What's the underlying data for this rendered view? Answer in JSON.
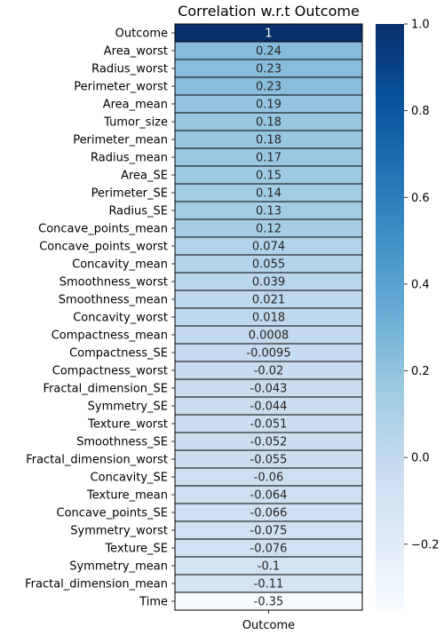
{
  "chart_data": {
    "type": "heatmap",
    "title": "Correlation w.r.t Outcome",
    "xlabel": "",
    "ylabel": "",
    "x_categories": [
      "Outcome"
    ],
    "y_categories": [
      "Outcome",
      "Area_worst",
      "Radius_worst",
      "Perimeter_worst",
      "Area_mean",
      "Tumor_size",
      "Perimeter_mean",
      "Radius_mean",
      "Area_SE",
      "Perimeter_SE",
      "Radius_SE",
      "Concave_points_mean",
      "Concave_points_worst",
      "Concavity_mean",
      "Smoothness_worst",
      "Smoothness_mean",
      "Concavity_worst",
      "Compactness_mean",
      "Compactness_SE",
      "Compactness_worst",
      "Fractal_dimension_SE",
      "Symmetry_SE",
      "Texture_worst",
      "Smoothness_SE",
      "Fractal_dimension_worst",
      "Concavity_SE",
      "Texture_mean",
      "Concave_points_SE",
      "Symmetry_worst",
      "Texture_SE",
      "Symmetry_mean",
      "Fractal_dimension_mean",
      "Time"
    ],
    "values": [
      1,
      0.24,
      0.23,
      0.23,
      0.19,
      0.18,
      0.18,
      0.17,
      0.15,
      0.14,
      0.13,
      0.12,
      0.074,
      0.055,
      0.039,
      0.021,
      0.018,
      0.0008,
      -0.0095,
      -0.02,
      -0.043,
      -0.044,
      -0.051,
      -0.052,
      -0.055,
      -0.06,
      -0.064,
      -0.066,
      -0.075,
      -0.076,
      -0.1,
      -0.11,
      -0.35
    ],
    "value_labels": [
      "1",
      "0.24",
      "0.23",
      "0.23",
      "0.19",
      "0.18",
      "0.18",
      "0.17",
      "0.15",
      "0.14",
      "0.13",
      "0.12",
      "0.074",
      "0.055",
      "0.039",
      "0.021",
      "0.018",
      "0.0008",
      "-0.0095",
      "-0.02",
      "-0.043",
      "-0.044",
      "-0.051",
      "-0.052",
      "-0.055",
      "-0.06",
      "-0.064",
      "-0.066",
      "-0.075",
      "-0.076",
      "-0.1",
      "-0.11",
      "-0.35"
    ],
    "colorbar": {
      "min": -0.35,
      "max": 1.0,
      "ticks": [
        -0.2,
        0.0,
        0.2,
        0.4,
        0.6,
        0.8,
        1.0
      ],
      "tick_labels": [
        "−0.2",
        "0.0",
        "0.2",
        "0.4",
        "0.6",
        "0.8",
        "1.0"
      ],
      "colormap": "Blues",
      "color_stops": [
        "#f7fbff",
        "#deebf7",
        "#c6dbef",
        "#9ecae1",
        "#6baed6",
        "#4292c6",
        "#2171b5",
        "#08519c",
        "#08306b"
      ]
    },
    "cell_border_color": "#000000",
    "grid": false,
    "legend": "right"
  }
}
